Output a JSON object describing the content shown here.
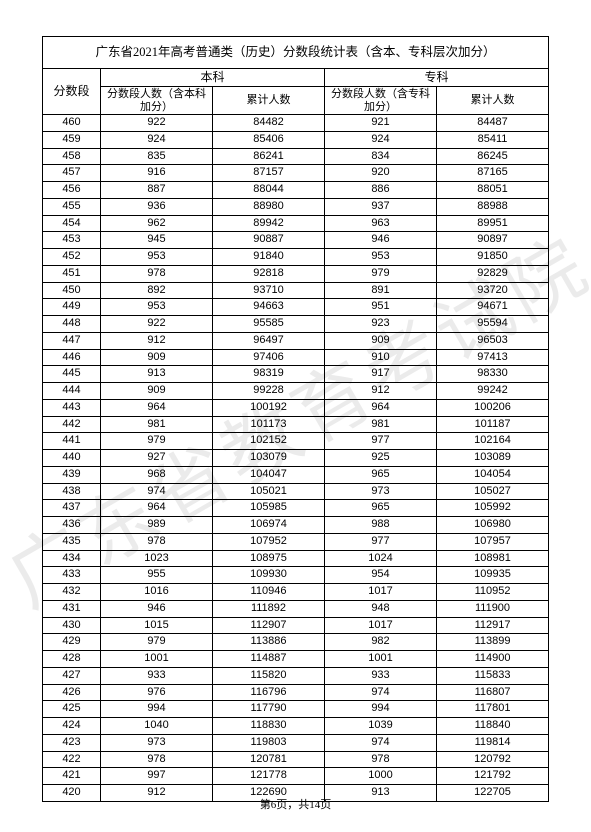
{
  "watermark": "广东省教育考试院",
  "title": "广东省2021年高考普通类（历史）分数段统计表（含本、专科层次加分）",
  "headers": {
    "score_band": "分数段",
    "benke_group": "本科",
    "zhuanke_group": "专科",
    "benke_count": "分数段人数（含本科加分）",
    "benke_cum": "累计人数",
    "zhuanke_count": "分数段人数（含专科加分）",
    "zhuanke_cum": "累计人数"
  },
  "rows": [
    {
      "score": 460,
      "bk_n": 922,
      "bk_c": 84482,
      "zk_n": 921,
      "zk_c": 84487
    },
    {
      "score": 459,
      "bk_n": 924,
      "bk_c": 85406,
      "zk_n": 924,
      "zk_c": 85411
    },
    {
      "score": 458,
      "bk_n": 835,
      "bk_c": 86241,
      "zk_n": 834,
      "zk_c": 86245
    },
    {
      "score": 457,
      "bk_n": 916,
      "bk_c": 87157,
      "zk_n": 920,
      "zk_c": 87165
    },
    {
      "score": 456,
      "bk_n": 887,
      "bk_c": 88044,
      "zk_n": 886,
      "zk_c": 88051
    },
    {
      "score": 455,
      "bk_n": 936,
      "bk_c": 88980,
      "zk_n": 937,
      "zk_c": 88988
    },
    {
      "score": 454,
      "bk_n": 962,
      "bk_c": 89942,
      "zk_n": 963,
      "zk_c": 89951
    },
    {
      "score": 453,
      "bk_n": 945,
      "bk_c": 90887,
      "zk_n": 946,
      "zk_c": 90897
    },
    {
      "score": 452,
      "bk_n": 953,
      "bk_c": 91840,
      "zk_n": 953,
      "zk_c": 91850
    },
    {
      "score": 451,
      "bk_n": 978,
      "bk_c": 92818,
      "zk_n": 979,
      "zk_c": 92829
    },
    {
      "score": 450,
      "bk_n": 892,
      "bk_c": 93710,
      "zk_n": 891,
      "zk_c": 93720
    },
    {
      "score": 449,
      "bk_n": 953,
      "bk_c": 94663,
      "zk_n": 951,
      "zk_c": 94671
    },
    {
      "score": 448,
      "bk_n": 922,
      "bk_c": 95585,
      "zk_n": 923,
      "zk_c": 95594
    },
    {
      "score": 447,
      "bk_n": 912,
      "bk_c": 96497,
      "zk_n": 909,
      "zk_c": 96503
    },
    {
      "score": 446,
      "bk_n": 909,
      "bk_c": 97406,
      "zk_n": 910,
      "zk_c": 97413
    },
    {
      "score": 445,
      "bk_n": 913,
      "bk_c": 98319,
      "zk_n": 917,
      "zk_c": 98330
    },
    {
      "score": 444,
      "bk_n": 909,
      "bk_c": 99228,
      "zk_n": 912,
      "zk_c": 99242
    },
    {
      "score": 443,
      "bk_n": 964,
      "bk_c": 100192,
      "zk_n": 964,
      "zk_c": 100206
    },
    {
      "score": 442,
      "bk_n": 981,
      "bk_c": 101173,
      "zk_n": 981,
      "zk_c": 101187
    },
    {
      "score": 441,
      "bk_n": 979,
      "bk_c": 102152,
      "zk_n": 977,
      "zk_c": 102164
    },
    {
      "score": 440,
      "bk_n": 927,
      "bk_c": 103079,
      "zk_n": 925,
      "zk_c": 103089
    },
    {
      "score": 439,
      "bk_n": 968,
      "bk_c": 104047,
      "zk_n": 965,
      "zk_c": 104054
    },
    {
      "score": 438,
      "bk_n": 974,
      "bk_c": 105021,
      "zk_n": 973,
      "zk_c": 105027
    },
    {
      "score": 437,
      "bk_n": 964,
      "bk_c": 105985,
      "zk_n": 965,
      "zk_c": 105992
    },
    {
      "score": 436,
      "bk_n": 989,
      "bk_c": 106974,
      "zk_n": 988,
      "zk_c": 106980
    },
    {
      "score": 435,
      "bk_n": 978,
      "bk_c": 107952,
      "zk_n": 977,
      "zk_c": 107957
    },
    {
      "score": 434,
      "bk_n": 1023,
      "bk_c": 108975,
      "zk_n": 1024,
      "zk_c": 108981
    },
    {
      "score": 433,
      "bk_n": 955,
      "bk_c": 109930,
      "zk_n": 954,
      "zk_c": 109935
    },
    {
      "score": 432,
      "bk_n": 1016,
      "bk_c": 110946,
      "zk_n": 1017,
      "zk_c": 110952
    },
    {
      "score": 431,
      "bk_n": 946,
      "bk_c": 111892,
      "zk_n": 948,
      "zk_c": 111900
    },
    {
      "score": 430,
      "bk_n": 1015,
      "bk_c": 112907,
      "zk_n": 1017,
      "zk_c": 112917
    },
    {
      "score": 429,
      "bk_n": 979,
      "bk_c": 113886,
      "zk_n": 982,
      "zk_c": 113899
    },
    {
      "score": 428,
      "bk_n": 1001,
      "bk_c": 114887,
      "zk_n": 1001,
      "zk_c": 114900
    },
    {
      "score": 427,
      "bk_n": 933,
      "bk_c": 115820,
      "zk_n": 933,
      "zk_c": 115833
    },
    {
      "score": 426,
      "bk_n": 976,
      "bk_c": 116796,
      "zk_n": 974,
      "zk_c": 116807
    },
    {
      "score": 425,
      "bk_n": 994,
      "bk_c": 117790,
      "zk_n": 994,
      "zk_c": 117801
    },
    {
      "score": 424,
      "bk_n": 1040,
      "bk_c": 118830,
      "zk_n": 1039,
      "zk_c": 118840
    },
    {
      "score": 423,
      "bk_n": 973,
      "bk_c": 119803,
      "zk_n": 974,
      "zk_c": 119814
    },
    {
      "score": 422,
      "bk_n": 978,
      "bk_c": 120781,
      "zk_n": 978,
      "zk_c": 120792
    },
    {
      "score": 421,
      "bk_n": 997,
      "bk_c": 121778,
      "zk_n": 1000,
      "zk_c": 121792
    },
    {
      "score": 420,
      "bk_n": 912,
      "bk_c": 122690,
      "zk_n": 913,
      "zk_c": 122705
    }
  ],
  "footer": "第6页，共14页"
}
